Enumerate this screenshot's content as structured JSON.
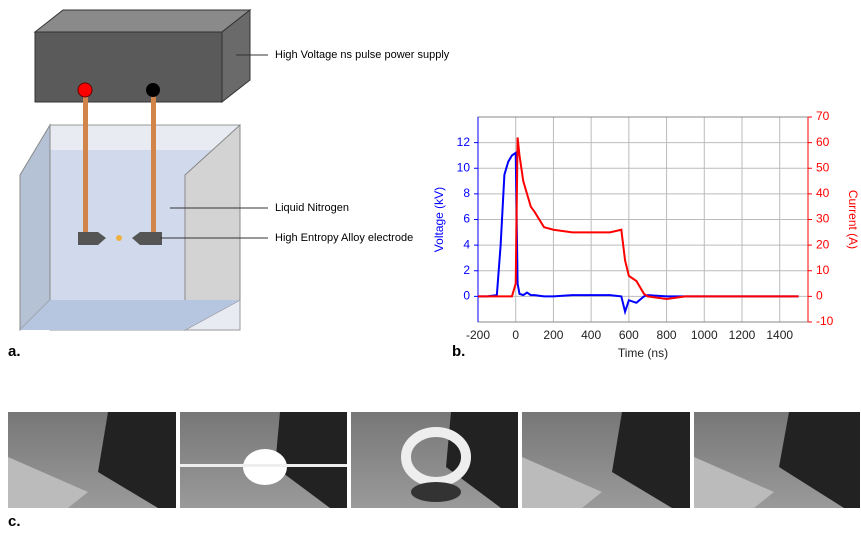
{
  "diagram": {
    "labels": [
      "High Voltage ns pulse power supply",
      "Liquid Nitrogen",
      "High Entropy Alloy electrode"
    ]
  },
  "panel_labels": [
    "a.",
    "b.",
    "c."
  ],
  "chart_data": {
    "type": "line",
    "x_label": "Time (ns)",
    "y_label": "Voltage (kV)",
    "y2_label": "Current (A)",
    "x": [
      -200,
      -150,
      -100,
      -80,
      -60,
      -40,
      -20,
      0,
      10,
      20,
      40,
      60,
      80,
      100,
      150,
      200,
      300,
      400,
      500,
      560,
      580,
      600,
      640,
      680,
      700,
      800,
      900,
      1000,
      1100,
      1200,
      1300,
      1400,
      1500
    ],
    "series": [
      {
        "name": "Voltage",
        "color": "#0000ff",
        "axis": "y",
        "values": [
          0,
          0,
          0.1,
          4,
          9.5,
          10.5,
          11,
          11.2,
          1,
          0.2,
          0.1,
          0.3,
          0.1,
          0.1,
          0,
          0,
          0.1,
          0.1,
          0.1,
          0,
          -1.2,
          -0.3,
          -0.5,
          0,
          0.1,
          0,
          0,
          0,
          0,
          0,
          0,
          0,
          0
        ]
      },
      {
        "name": "Current",
        "color": "#ff0000",
        "axis": "y2",
        "values": [
          0,
          0,
          0,
          0,
          0,
          0,
          0,
          5,
          62,
          55,
          45,
          40,
          35,
          33,
          27,
          26,
          25,
          25,
          25,
          26,
          14,
          8,
          6,
          1,
          0,
          -1,
          0,
          0,
          0,
          0,
          0,
          0,
          0
        ]
      }
    ],
    "xlim": [
      -200,
      1550
    ],
    "xticks": [
      -200,
      0,
      200,
      400,
      600,
      800,
      1000,
      1200,
      1400
    ],
    "ylim": [
      -2,
      14
    ],
    "yticks": [
      0,
      2,
      4,
      6,
      8,
      10,
      12
    ],
    "y2lim": [
      -10,
      70
    ],
    "y2ticks": [
      -10,
      0,
      10,
      20,
      30,
      40,
      50,
      60,
      70
    ],
    "grid": true
  }
}
